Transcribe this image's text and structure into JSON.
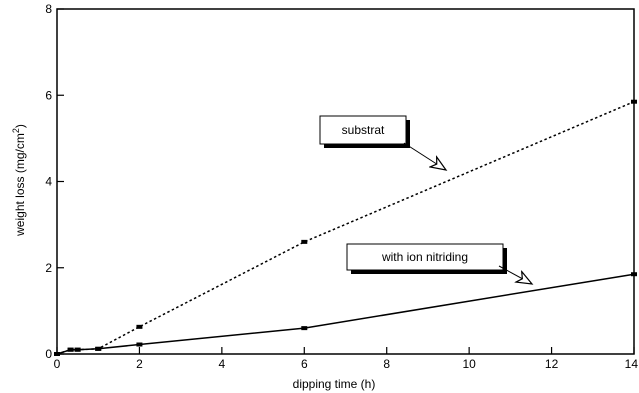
{
  "chart_data": {
    "type": "line",
    "xlabel": "dipping time (h)",
    "ylabel": "weight loss (mg/cm",
    "ylabel_superscript": "2",
    "ylabel_close": ")",
    "xlim": [
      0,
      14
    ],
    "ylim": [
      0,
      8
    ],
    "x_ticks": [
      "0",
      "2",
      "4",
      "6",
      "8",
      "10",
      "12",
      "14"
    ],
    "y_ticks": [
      "0",
      "2",
      "4",
      "6",
      "8"
    ],
    "grid": false,
    "series": [
      {
        "name": "substrat",
        "style": "dotted",
        "color": "#000000",
        "points": [
          [
            0,
            0
          ],
          [
            0.33,
            0.1
          ],
          [
            0.5,
            0.1
          ],
          [
            1,
            0.12
          ],
          [
            2,
            0.63
          ],
          [
            6,
            2.6
          ],
          [
            14,
            5.85
          ]
        ]
      },
      {
        "name": "with ion nitriding",
        "style": "solid",
        "color": "#000000",
        "points": [
          [
            0,
            0
          ],
          [
            0.33,
            0.1
          ],
          [
            0.5,
            0.1
          ],
          [
            1,
            0.12
          ],
          [
            2,
            0.22
          ],
          [
            6,
            0.6
          ],
          [
            14,
            1.85
          ]
        ]
      }
    ]
  }
}
